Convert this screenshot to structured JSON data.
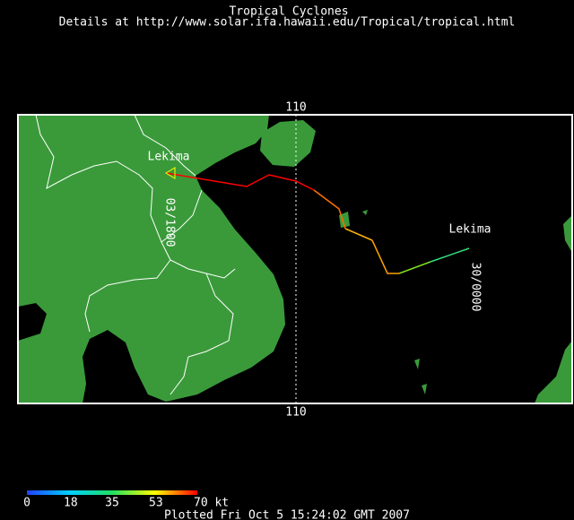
{
  "header": {
    "title": "Tropical Cyclones",
    "subtitle": "Details at http://www.solar.ifa.hawaii.edu/Tropical/tropical.html"
  },
  "map": {
    "longitude_top": "110",
    "longitude_bottom": "110",
    "storm_labels": [
      "Lekima",
      "Lekima"
    ],
    "time_labels": [
      "03/1800",
      "30/0000"
    ]
  },
  "colorbar": {
    "ticks": [
      0,
      18,
      35,
      53,
      {
        "value": 70,
        "label": "70 kt"
      }
    ]
  },
  "footer": "Plotted Fri Oct 5 15:24:02 GMT 2007"
}
